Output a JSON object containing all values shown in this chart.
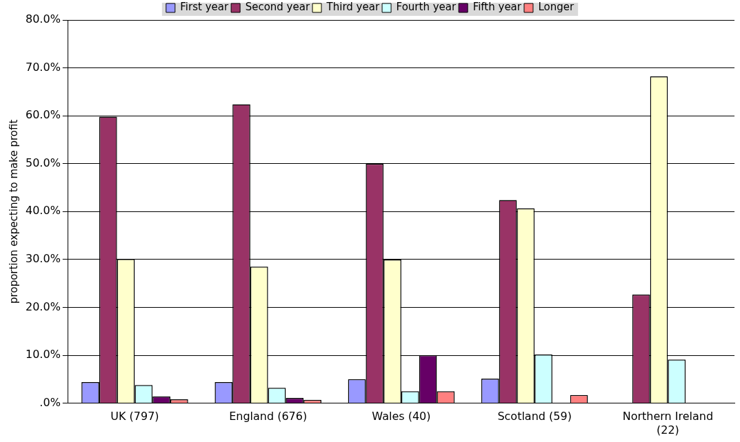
{
  "chart_data": {
    "type": "bar",
    "ylabel": "proportion expecting to make profit",
    "categories": [
      "UK (797)",
      "England (676)",
      "Wales (40)",
      "Scotland (59)",
      "Northern Ireland (22)"
    ],
    "series": [
      {
        "name": "First year",
        "color": "#9999ff",
        "values": [
          4.4,
          4.4,
          5.0,
          5.1,
          0
        ]
      },
      {
        "name": "Second year",
        "color": "#993366",
        "values": [
          59.8,
          62.4,
          50.0,
          42.4,
          22.7
        ]
      },
      {
        "name": "Third year",
        "color": "#ffffcc",
        "values": [
          30.1,
          28.5,
          30.0,
          40.7,
          68.2
        ]
      },
      {
        "name": "Fourth year",
        "color": "#ccffff",
        "values": [
          3.8,
          3.2,
          2.5,
          10.2,
          9.1
        ]
      },
      {
        "name": "Fifth year",
        "color": "#660066",
        "values": [
          1.4,
          1.1,
          10.0,
          0,
          0
        ]
      },
      {
        "name": "Longer",
        "color": "#ff8080",
        "values": [
          0.8,
          0.7,
          2.5,
          1.7,
          0
        ]
      }
    ],
    "ylim": [
      0,
      80
    ],
    "yticks": [
      {
        "value": 0,
        "label": ".0%"
      },
      {
        "value": 10,
        "label": "10.0%"
      },
      {
        "value": 20,
        "label": "20.0%"
      },
      {
        "value": 30,
        "label": "30.0%"
      },
      {
        "value": 40,
        "label": "40.0%"
      },
      {
        "value": 50,
        "label": "50.0%"
      },
      {
        "value": 60,
        "label": "60.0%"
      },
      {
        "value": 70,
        "label": "70.0%"
      },
      {
        "value": 80,
        "label": "80.0%"
      }
    ],
    "grid": "y",
    "legend": "top"
  }
}
